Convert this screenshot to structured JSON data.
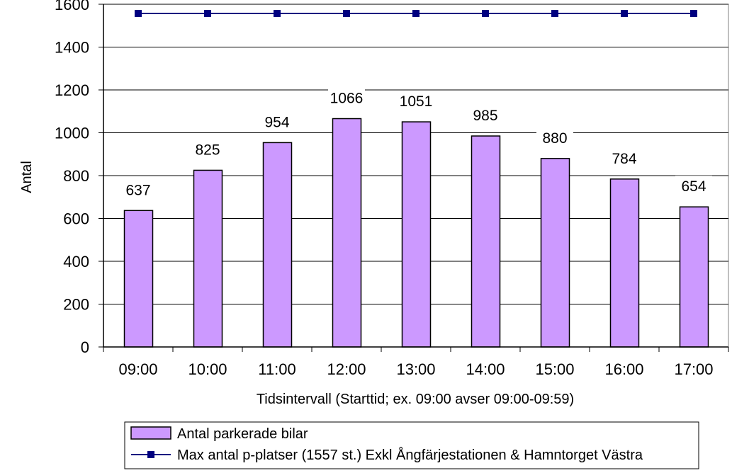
{
  "chart_data": {
    "type": "bar",
    "categories": [
      "09:00",
      "10:00",
      "11:00",
      "12:00",
      "13:00",
      "14:00",
      "15:00",
      "16:00",
      "17:00"
    ],
    "series": [
      {
        "name": "Antal parkerade bilar",
        "type": "bar",
        "values": [
          637,
          825,
          954,
          1066,
          1051,
          985,
          880,
          784,
          654
        ],
        "color": "#cc99ff"
      },
      {
        "name": "Max antal p-platser (1557 st.) Exkl Ångfärjestationen & Hamntorget Västra",
        "type": "line",
        "values": [
          1557,
          1557,
          1557,
          1557,
          1557,
          1557,
          1557,
          1557,
          1557
        ],
        "color": "#000080"
      }
    ],
    "title": "",
    "xlabel": "Tidsintervall (Starttid; ex. 09:00 avser 09:00-09:59)",
    "ylabel": "Antal",
    "ylim": [
      0,
      1600
    ],
    "yticks": [
      0,
      200,
      400,
      600,
      800,
      1000,
      1200,
      1400,
      1600
    ],
    "grid": true,
    "legend_position": "bottom"
  }
}
